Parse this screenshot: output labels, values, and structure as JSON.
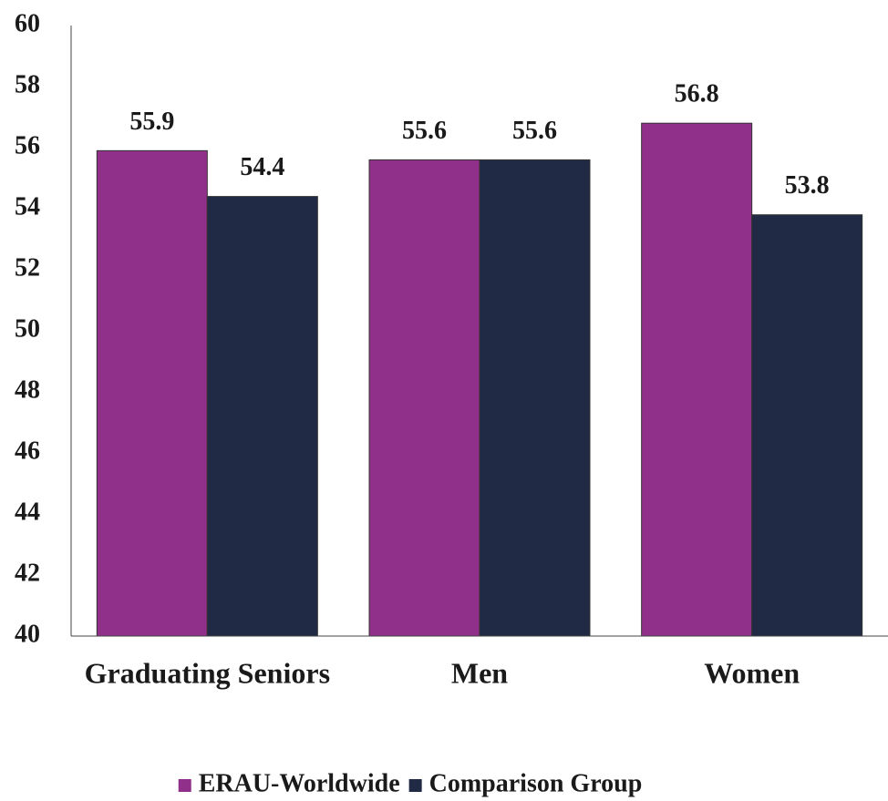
{
  "chart_data": {
    "type": "bar",
    "categories": [
      "Graduating Seniors",
      "Men",
      "Women"
    ],
    "series": [
      {
        "name": "ERAU-Worldwide",
        "color": "#91308a",
        "values": [
          55.9,
          55.6,
          56.8
        ]
      },
      {
        "name": "Comparison Group",
        "color": "#202a44",
        "values": [
          54.4,
          55.6,
          53.8
        ]
      }
    ],
    "ylim": [
      40,
      60
    ],
    "yticks": [
      40,
      42,
      44,
      46,
      48,
      50,
      52,
      54,
      56,
      58,
      60
    ],
    "grid": false,
    "legend": "bottom"
  }
}
